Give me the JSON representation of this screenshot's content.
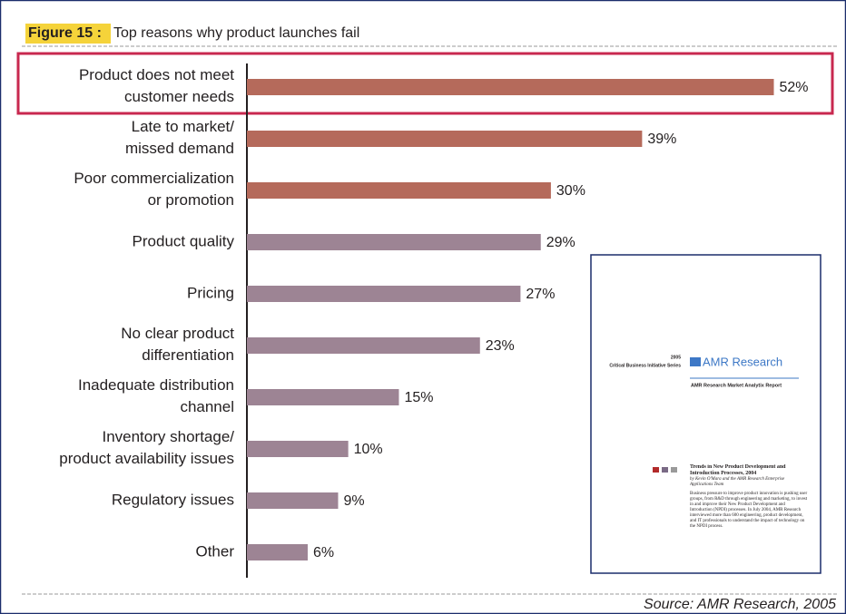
{
  "chart_data": {
    "type": "hbar",
    "title_prefix": "Figure 15 :",
    "title": "Top reasons why product launches fail",
    "categories": [
      "Product does not meet\ncustomer needs",
      "Late to market/\nmissed demand",
      "Poor commercialization\nor promotion",
      "Product quality",
      "Pricing",
      "No clear product\ndifferentiation",
      "Inadequate distribution\nchannel",
      "Inventory shortage/\nproduct availability issues",
      "Regulatory issues",
      "Other"
    ],
    "values": [
      52,
      39,
      30,
      29,
      27,
      23,
      15,
      10,
      9,
      6
    ],
    "value_labels": [
      "52%",
      "39%",
      "30%",
      "29%",
      "27%",
      "23%",
      "15%",
      "10%",
      "9%",
      "6%"
    ],
    "colors": [
      "#b56a5b",
      "#b56a5b",
      "#b56a5b",
      "#9d8494",
      "#9d8494",
      "#9d8494",
      "#9d8494",
      "#9d8494",
      "#9d8494",
      "#9d8494"
    ],
    "xlim": [
      0,
      55
    ],
    "source": "Source: AMR Research, 2005",
    "inset": {
      "year": "2005",
      "series_name": "Critical Business Initiative Series",
      "brand": "AMR Research",
      "report_type": "AMR Research Market Analytix Report",
      "report_title": "Trends in New Product Development and Introduction Processes, 2004",
      "authors": "by Kevin O'Mara and the AMR Research Enterprise Applications Team",
      "summary": "Business pressure to improve product innovation is pushing user groups, from R&D through engineering and marketing, to invest in and improve their New Product Development and Introduction (NPDI) processes. In July 2004, AMR Research interviewed more than 600 engineering, product development, and IT professionals to understand the impact of technology on the NPDI process."
    }
  }
}
